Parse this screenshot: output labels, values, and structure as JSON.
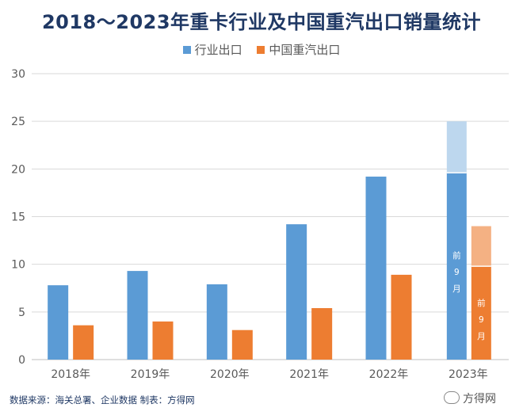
{
  "chart_data": {
    "type": "bar",
    "title": "2018～2023年重卡行业及中国重汽出口销量统计",
    "categories": [
      "2018年",
      "2019年",
      "2020年",
      "2021年",
      "2022年",
      "2023年"
    ],
    "ylim": [
      0,
      30
    ],
    "yticks": [
      "0",
      "5",
      "10",
      "15",
      "20",
      "25",
      "30"
    ],
    "grid": true,
    "legend_position": "top-center",
    "series": [
      {
        "name": "行业出口",
        "color": "#5b9bd5",
        "values": [
          7.8,
          9.3,
          7.9,
          14.2,
          19.2,
          19.6
        ]
      },
      {
        "name": "中国重汽出口",
        "color": "#ed7d31",
        "values": [
          3.6,
          4.0,
          3.1,
          5.4,
          8.9,
          9.8
        ]
      }
    ],
    "estimates_2023": {
      "行业出口": {
        "total": 25.0,
        "color": "#bdd7ee"
      },
      "中国重汽出口": {
        "total": 14.0,
        "color": "#f4b183"
      }
    },
    "annotations": [
      "前9月",
      "前9月"
    ]
  },
  "source": "数据来源：海关总署、企业数据   制表：方得网",
  "watermark": "方得网"
}
